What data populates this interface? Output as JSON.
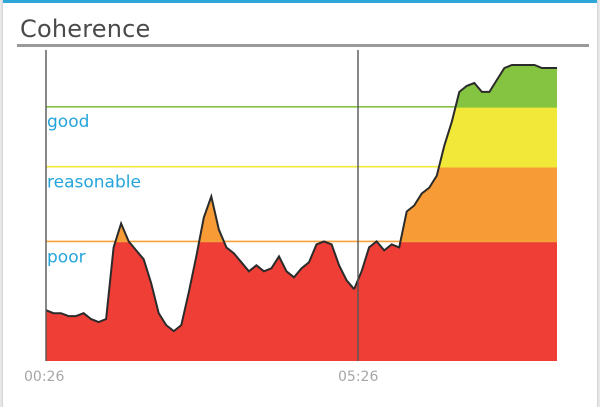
{
  "panel": {
    "title": "Coherence"
  },
  "colors": {
    "header_accent": "#2fa6d8",
    "poor": "#ef3e36",
    "reasonable": "#f79b36",
    "good": "#f1e839",
    "excellent": "#84c441",
    "curve": "#2b2b2b",
    "label": "#25a4dc"
  },
  "chart_data": {
    "type": "area",
    "title": "Coherence",
    "xlabel": "",
    "ylabel": "",
    "x_ticks": [
      "00:26",
      "05:26"
    ],
    "ylim": [
      0,
      100
    ],
    "levels": [
      {
        "name": "poor",
        "value": 40,
        "color": "#f5a23c"
      },
      {
        "name": "reasonable",
        "value": 65,
        "color": "#f1e839"
      },
      {
        "name": "good",
        "value": 85,
        "color": "#84c441"
      }
    ],
    "series": [
      {
        "x": [
          0.0,
          0.2,
          0.4,
          0.6,
          0.8,
          1.0,
          1.2,
          1.4,
          1.6,
          1.8,
          2.0,
          2.2,
          2.4,
          2.6,
          2.8,
          3.0,
          3.2,
          3.4,
          3.6,
          3.8,
          4.0,
          4.2,
          4.4,
          4.6,
          4.8,
          5.0,
          5.2,
          5.4,
          5.6,
          5.8,
          6.0,
          6.2,
          6.4,
          6.6,
          6.8,
          7.0,
          7.2,
          7.4,
          7.6,
          7.8,
          8.0,
          8.2
        ],
        "values": [
          17,
          16,
          16,
          15,
          15,
          16,
          14,
          13,
          14,
          38,
          46,
          40,
          37,
          34,
          26,
          16,
          12,
          10,
          12,
          23,
          35,
          48,
          55,
          44,
          38,
          36,
          33,
          30,
          32,
          30,
          31,
          35,
          30,
          28,
          31,
          33,
          39,
          40,
          39,
          32,
          27,
          24
        ]
      },
      {
        "x": [
          8.2,
          8.4,
          8.6,
          8.8,
          9.0,
          9.2,
          9.4,
          9.6,
          9.8,
          10.0,
          10.2,
          10.4,
          10.6,
          10.8,
          11.0,
          11.2,
          11.4,
          11.6,
          11.8,
          12.0,
          12.2,
          12.4,
          12.6,
          12.8,
          13.0,
          13.2,
          13.4,
          13.6
        ],
        "values": [
          24,
          30,
          38,
          40,
          37,
          39,
          38,
          50,
          52,
          56,
          58,
          62,
          72,
          80,
          90,
          92,
          93,
          90,
          90,
          94,
          98,
          99,
          99,
          99,
          99,
          98,
          98,
          98
        ]
      }
    ],
    "markers": [
      "00:26",
      "05:26"
    ]
  }
}
